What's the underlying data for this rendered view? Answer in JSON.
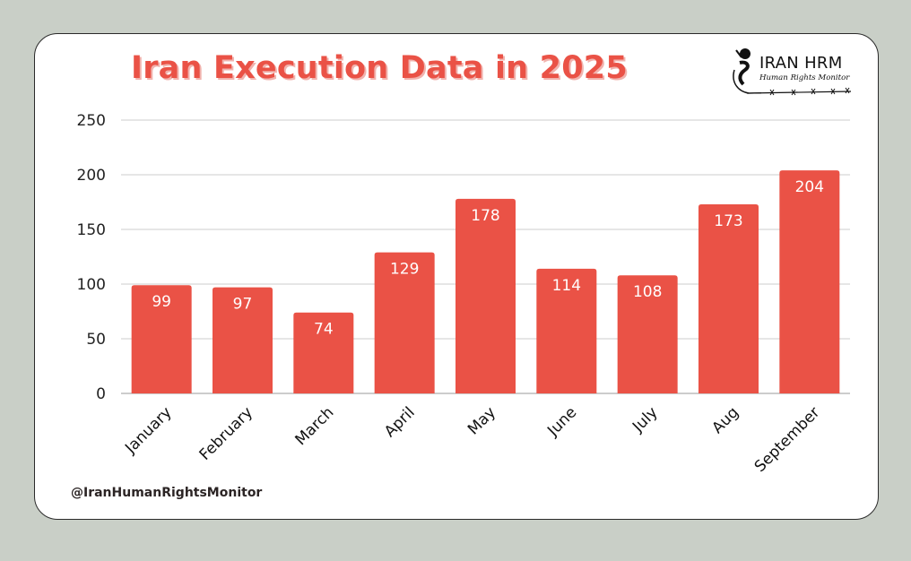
{
  "header": {
    "title": "Iran Execution Data in 2025"
  },
  "logo": {
    "icon": "barbed-wire-fist-icon",
    "brand": "IRAN HRM",
    "subtitle": "Human Rights Monitor"
  },
  "footer": {
    "handle": "@IranHumanRightsMonitor"
  },
  "colors": {
    "bar": "#ea5246",
    "title": "#ea5246",
    "background": "#c9cfc7",
    "card": "#ffffff",
    "gridline": "#cccccc"
  },
  "chart_data": {
    "type": "bar",
    "title": "Iran Execution Data in 2025",
    "xlabel": "",
    "ylabel": "",
    "categories": [
      "January",
      "February",
      "March",
      "April",
      "May",
      "June",
      "July",
      "Aug",
      "September"
    ],
    "values": [
      99,
      97,
      74,
      129,
      178,
      114,
      108,
      173,
      204
    ],
    "data_labels": [
      "99",
      "97",
      "74",
      "129",
      "178",
      "114",
      "108",
      "173",
      "204"
    ],
    "ylim": [
      0,
      250
    ],
    "yticks": [
      0,
      50,
      100,
      150,
      200,
      250
    ],
    "ytick_labels": [
      "0",
      "50",
      "100",
      "150",
      "200",
      "250"
    ],
    "grid": true,
    "legend": "none",
    "xtick_rotation_deg": -45
  }
}
